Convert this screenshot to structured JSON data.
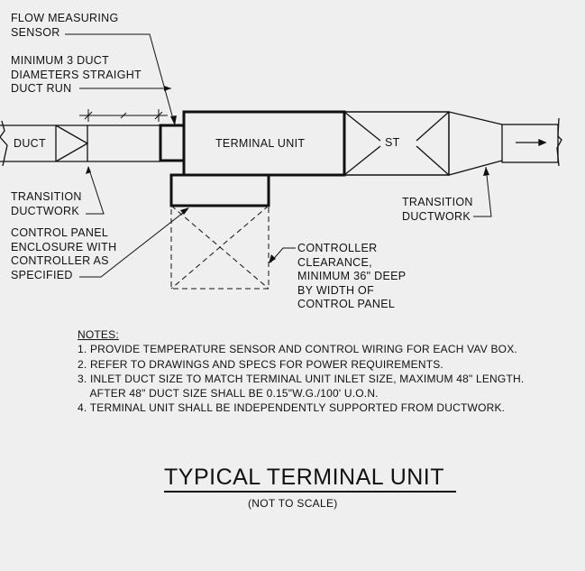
{
  "labels": {
    "flow_sensor": "FLOW MEASURING\nSENSOR",
    "straight_run": "MINIMUM 3 DUCT\nDIAMETERS STRAIGHT\nDUCT RUN",
    "duct": "DUCT",
    "terminal_unit": "TERMINAL UNIT",
    "st": "ST",
    "transition_left": "TRANSITION\nDUCTWORK",
    "transition_right": "TRANSITION\nDUCTWORK",
    "control_panel": "CONTROL PANEL\nENCLOSURE WITH\nCONTROLLER AS\nSPECIFIED",
    "clearance": "CONTROLLER\nCLEARANCE,\nMINIMUM 36\" DEEP\nBY WIDTH OF\nCONTROL PANEL"
  },
  "notes": {
    "heading": "NOTES:",
    "items": [
      "1. PROVIDE TEMPERATURE SENSOR AND CONTROL WIRING FOR EACH VAV BOX.",
      "2. REFER TO DRAWINGS AND SPECS FOR POWER REQUIREMENTS.",
      "3. INLET DUCT SIZE TO MATCH TERMINAL UNIT INLET SIZE, MAXIMUM 48\" LENGTH.",
      "    AFTER 48\" DUCT SIZE SHALL BE 0.15\"W.G./100' U.O.N.",
      "4. TERMINAL UNIT SHALL BE INDEPENDENTLY SUPPORTED FROM DUCTWORK."
    ]
  },
  "title": "TYPICAL TERMINAL UNIT",
  "subtitle": "(NOT TO SCALE)"
}
